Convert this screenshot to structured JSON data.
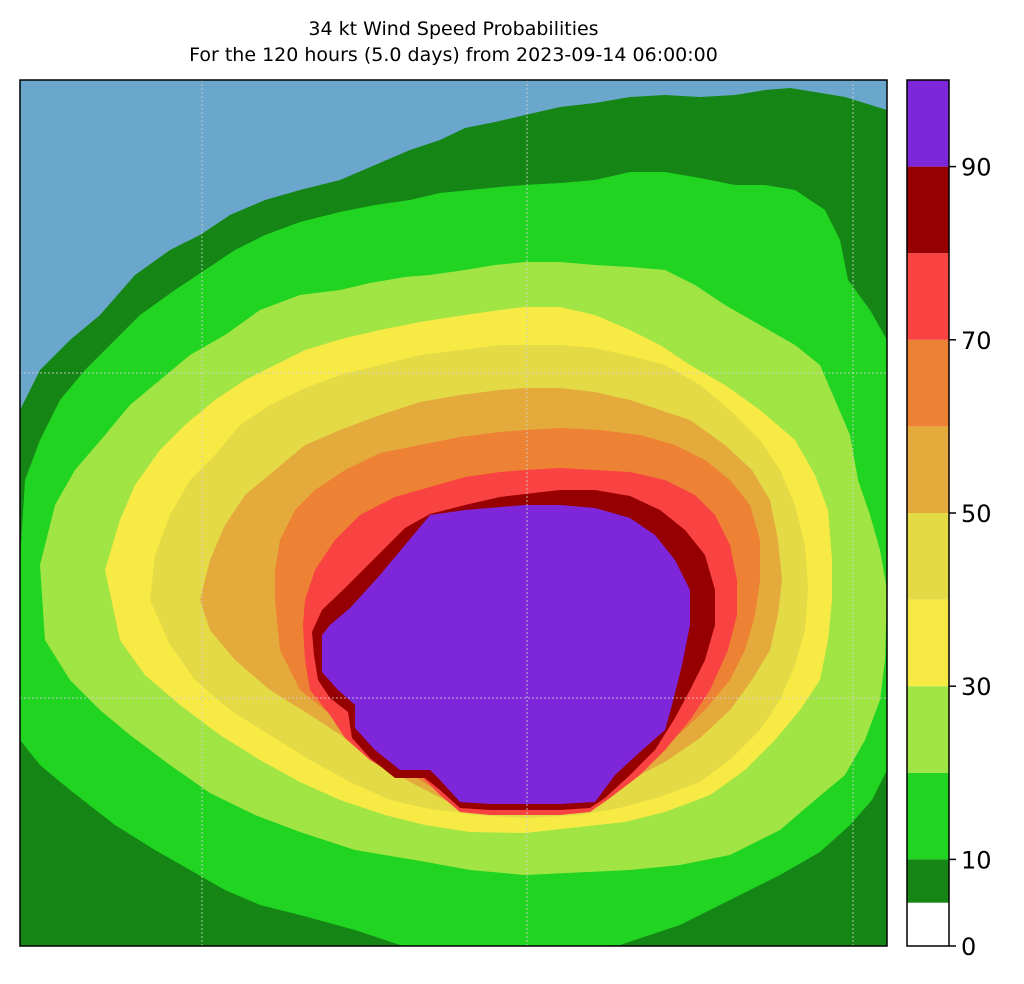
{
  "chart_data": {
    "type": "heatmap",
    "title": "34 kt Wind Speed Probabilities",
    "subtitle": "For the 120 hours (5.0 days) from 2023-09-14 06:00:00",
    "background_color": "#6ba7cc",
    "grid": true,
    "colorbar": {
      "placement": "right",
      "range": [
        0,
        100
      ],
      "ticks": [
        0,
        10,
        30,
        50,
        70,
        90
      ],
      "tick_labels": [
        "0",
        "10",
        "30",
        "50",
        "70",
        "90"
      ],
      "levels": [
        {
          "min": 0,
          "max": 5,
          "color": "#ffffff"
        },
        {
          "min": 5,
          "max": 10,
          "color": "#158615"
        },
        {
          "min": 10,
          "max": 20,
          "color": "#21d421"
        },
        {
          "min": 20,
          "max": 30,
          "color": "#a1e544"
        },
        {
          "min": 30,
          "max": 40,
          "color": "#f8ea45"
        },
        {
          "min": 40,
          "max": 50,
          "color": "#e4da45"
        },
        {
          "min": 50,
          "max": 60,
          "color": "#e4aa3b"
        },
        {
          "min": 60,
          "max": 70,
          "color": "#ee8234"
        },
        {
          "min": 70,
          "max": 80,
          "color": "#f94242"
        },
        {
          "min": 80,
          "max": 90,
          "color": "#960000"
        },
        {
          "min": 90,
          "max": 100,
          "color": "#7e26d9"
        }
      ]
    }
  }
}
